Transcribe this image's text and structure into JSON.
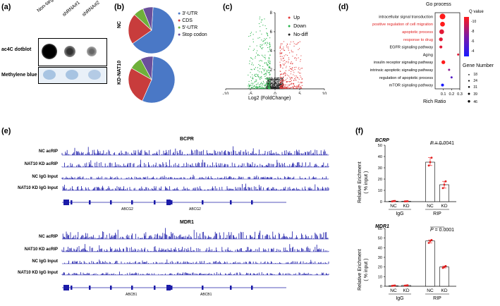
{
  "colors": {
    "blue": "#4a78c6",
    "red": "#c83c3c",
    "green": "#6fb03a",
    "purple": "#6a4f9b",
    "trackBlue": "#1b1ba8",
    "up": "#e23a3a",
    "down": "#27b24a",
    "nodiff": "#222222"
  },
  "panel_a": {
    "label": "(a)",
    "columns": [
      "Non-target Ctrl",
      "shRNA#1",
      "shRNA#2"
    ],
    "rows": [
      "ac4C dotblot",
      "Methylene blue"
    ]
  },
  "panel_b": {
    "label": "(b)",
    "rows": [
      "NC",
      "KD-NAT10"
    ],
    "legend": [
      "3'-UTR",
      "CDS",
      "5'-UTR",
      "Stop codon"
    ],
    "legend_colors": [
      "#4a78c6",
      "#c83c3c",
      "#6fb03a",
      "#6a4f9b"
    ]
  },
  "panel_c": {
    "label": "(c)",
    "xlabel": "Log2 (FoldChange)",
    "legend": [
      "Up",
      "Down",
      "No-diff"
    ]
  },
  "panel_d": {
    "label": "(d)",
    "title": "Go process",
    "xlabel": "Rich Ratio",
    "qlegend_title": "Q value",
    "q_ticks": [
      "-10",
      "-8",
      "-6",
      "-4"
    ],
    "size_title": "Gene Number",
    "size_values": [
      "18",
      "24",
      "31",
      "39",
      "46"
    ]
  },
  "panel_e": {
    "label": "(e)",
    "groups": [
      {
        "title": "BCPR",
        "tracks": [
          "NC acRIP",
          "NAT10 KD acRIP",
          "NC IgG Input",
          "NAT10 KD IgG Input"
        ],
        "genes": [
          "ABCG2",
          "ABCG2"
        ]
      },
      {
        "title": "MDR1",
        "tracks": [
          "NC acRIP",
          "NAT10 KD acRIP",
          "NC IgG Input",
          "NAT10 KD IgG Input"
        ],
        "genes": [
          "ABCB1",
          "ABCB1"
        ]
      }
    ]
  },
  "panel_f": {
    "label": "(f)",
    "ylabel1": "Relative Erichment",
    "ylabel2": "( % input )",
    "xcats": [
      "NC",
      "KD",
      "NC",
      "KD"
    ],
    "groups": [
      "IgG",
      "RIP"
    ]
  },
  "chart_data": [
    {
      "type": "pie",
      "title": "NC",
      "categories": [
        "3'-UTR",
        "CDS",
        "5'-UTR",
        "Stop codon"
      ],
      "values": [
        64.3,
        21.5,
        7.1,
        7.1
      ]
    },
    {
      "type": "pie",
      "title": "KD-NAT10",
      "categories": [
        "3'-UTR",
        "CDS",
        "5'-UTR",
        "Stop codon"
      ],
      "values": [
        55.6,
        26.7,
        8.9,
        8.8
      ]
    },
    {
      "type": "scatter",
      "title": "",
      "xlabel": "Log2 (FoldChange)",
      "ylabel": "",
      "xlim": [
        -10,
        10
      ],
      "ylim": [
        0,
        8
      ],
      "xticks": [
        -10,
        -5,
        0,
        5,
        10
      ],
      "yticks": [
        2,
        4,
        6,
        8
      ],
      "series": [
        {
          "name": "Up"
        },
        {
          "name": "Down"
        },
        {
          "name": "No-diff"
        }
      ]
    },
    {
      "type": "scatter",
      "title": "Go process",
      "xlabel": "Rich Ratio",
      "xlim": [
        0,
        0.3
      ],
      "xticks": [
        "0.1",
        "0.2",
        "0.3"
      ],
      "categories": [
        "intracellular signal transduction",
        "positive regulation of cell migration",
        "apoptotic process",
        "response to drug",
        "EGFR signaling pathway",
        "Aging",
        "insulin receptor signaling pathway",
        "intrinsic apoptotic signaling pathway",
        "regulation of apoptotic process",
        "mTOR signaling pathway"
      ],
      "highlighted": [
        "positive regulation of cell migration",
        "apoptotic process",
        "response to drug"
      ],
      "x": [
        0.09,
        0.09,
        0.08,
        0.07,
        0.07,
        0.28,
        0.1,
        0.17,
        0.2,
        0.09
      ],
      "q_value": [
        -12,
        -12,
        -11,
        -11,
        -11,
        -11,
        -12,
        -8,
        -6,
        -4
      ],
      "gene_number": [
        46,
        39,
        39,
        31,
        24,
        18,
        31,
        18,
        18,
        24
      ]
    },
    {
      "type": "bar",
      "title": "BCRP",
      "categories": [
        "NC",
        "KD",
        "NC",
        "KD"
      ],
      "values": [
        0.4,
        0.3,
        35,
        15
      ],
      "points": [
        [
          0.2,
          0.5,
          0.6
        ],
        [
          0.2,
          0.3,
          0.4
        ],
        [
          32,
          35,
          39
        ],
        [
          12,
          15,
          18
        ]
      ],
      "ylim": [
        0,
        50
      ],
      "yticks": [
        0,
        10,
        20,
        30,
        40,
        50
      ],
      "annotation": "P = 0.0041"
    },
    {
      "type": "bar",
      "title": "MDR1",
      "categories": [
        "NC",
        "KD",
        "NC",
        "KD"
      ],
      "values": [
        0.6,
        0.8,
        47,
        20
      ],
      "points": [
        [
          0.4,
          0.6,
          0.8
        ],
        [
          0.6,
          0.8,
          1.0
        ],
        [
          45,
          47,
          48
        ],
        [
          19,
          20,
          21
        ]
      ],
      "ylim": [
        0,
        60
      ],
      "yticks": [
        0,
        10,
        20,
        30,
        40,
        50,
        60
      ],
      "annotation": "P = 0.0001"
    }
  ]
}
